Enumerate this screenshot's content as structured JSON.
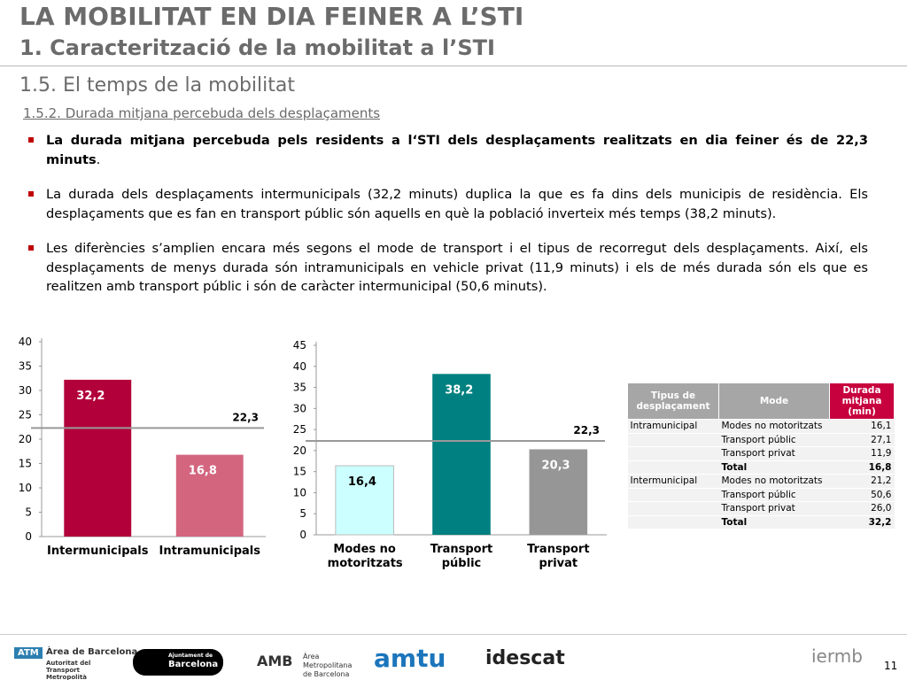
{
  "header": {
    "title": "LA MOBILITAT EN DIA FEINER A L’STI",
    "subtitle": "1. Caracterització de la mobilitat a l’STI",
    "section": "1.5. El temps de la mobilitat",
    "subsection": "1.5.2. Durada mitjana percebuda dels desplaçaments"
  },
  "bullets": [
    {
      "bold": "La durada mitjana percebuda pels residents a l‘STI dels desplaçaments realitzats en dia feiner és de 22,3 minuts",
      "text": "."
    },
    {
      "text": "La durada dels desplaçaments intermunicipals (32,2 minuts) duplica la que es fa dins dels municipis de residència. Els desplaçaments que es fan en transport públic són aquells en què la població inverteix més temps (38,2 minuts)."
    },
    {
      "text": "Les diferències s’amplien encara més segons el mode de transport i el tipus de recorregut dels desplaçaments. Així, els desplaçaments de menys durada són intramunicipals  en vehicle privat (11,9 minuts) i els de més durada són els que es realitzen amb transport públic i són de caràcter intermunicipal (50,6 minuts)."
    }
  ],
  "chart_data": [
    {
      "type": "bar",
      "categories": [
        "Intermunicipals",
        "Intramunicipals"
      ],
      "values": [
        32.2,
        16.8
      ],
      "value_labels": [
        "32,2",
        "16,8"
      ],
      "colors": [
        "#b2003a",
        "#d4657f"
      ],
      "ylim": [
        0,
        40
      ],
      "yticks": [
        0,
        5,
        10,
        15,
        20,
        25,
        30,
        35,
        40
      ],
      "reference": {
        "value": 22.3,
        "label": "22,3"
      }
    },
    {
      "type": "bar",
      "categories": [
        "Modes no motoritzats",
        "Transport públic",
        "Transport privat"
      ],
      "values": [
        16.4,
        38.2,
        20.3
      ],
      "value_labels": [
        "16,4",
        "38,2",
        "20,3"
      ],
      "colors": [
        "#ccffff",
        "#008080",
        "#969696"
      ],
      "ylim": [
        0,
        45
      ],
      "yticks": [
        0,
        5,
        10,
        15,
        20,
        25,
        30,
        35,
        40,
        45
      ],
      "reference": {
        "value": 22.3,
        "label": "22,3"
      }
    }
  ],
  "table": {
    "header": [
      "Tipus de desplaçament",
      "Mode",
      "Durada mitjana (min)"
    ],
    "rows": [
      [
        "Intramunicipal",
        "Modes no motoritzats",
        "16,1"
      ],
      [
        "",
        "Transport públic",
        "27,1"
      ],
      [
        "",
        "Transport privat",
        "11,9"
      ],
      [
        "",
        "Total",
        "16,8"
      ],
      [
        "Intermunicipal",
        "Modes no motoritzats",
        "21,2"
      ],
      [
        "",
        "Transport públic",
        "50,6"
      ],
      [
        "",
        "Transport privat",
        "26,0"
      ],
      [
        "",
        "Total",
        "32,2"
      ]
    ]
  },
  "footer": {
    "logos": [
      "ATM",
      "Àrea de Barcelona",
      "Autoritat del Transport Metropolità",
      "Ajuntament de",
      "Barcelona",
      "AMB",
      "Àrea Metropolitana de Barcelona",
      "amtu",
      "idescat",
      "iermb"
    ],
    "page": "11"
  }
}
